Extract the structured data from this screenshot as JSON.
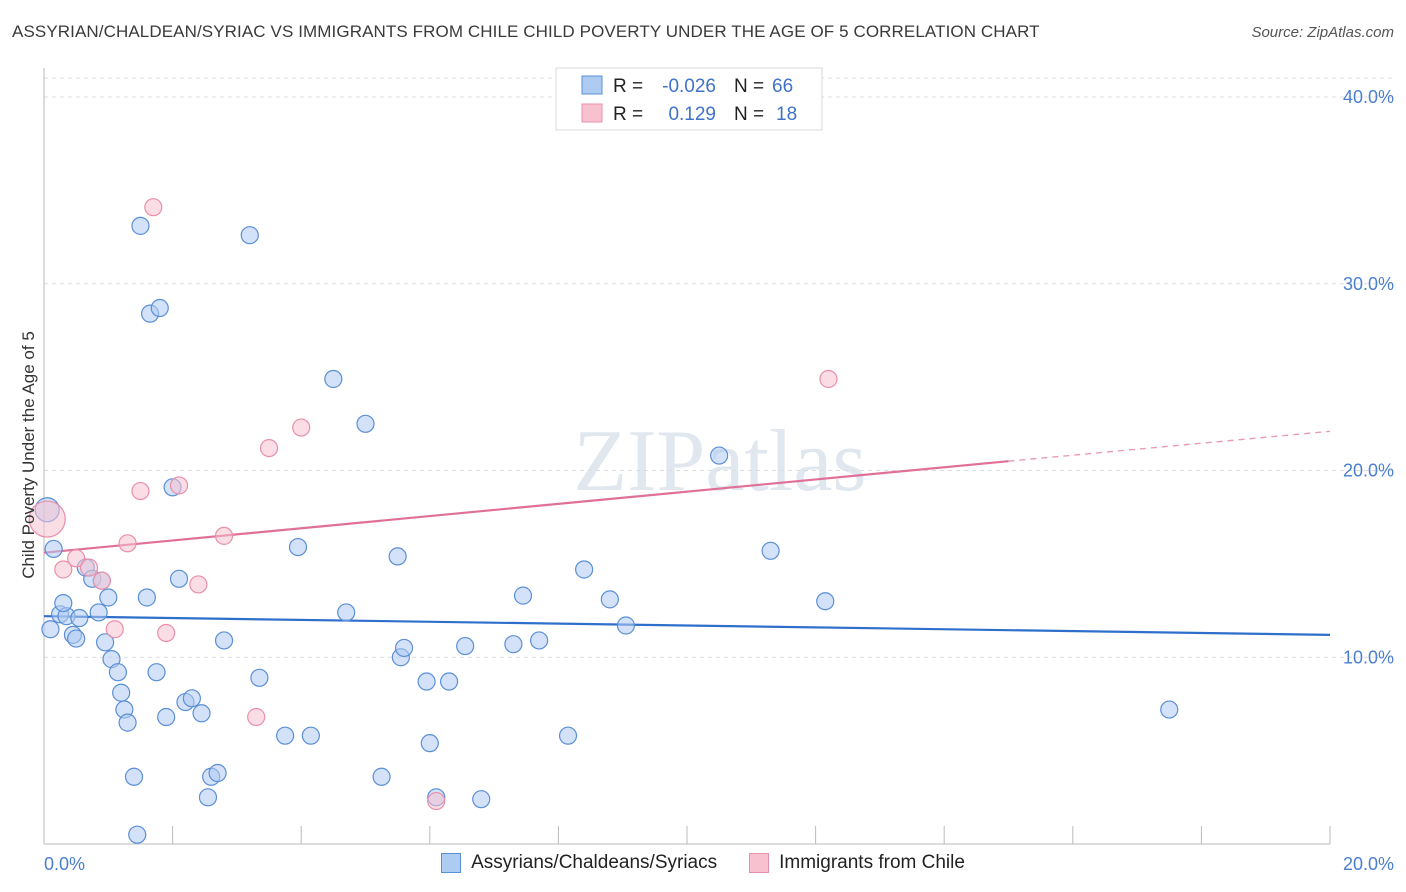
{
  "title": "ASSYRIAN/CHALDEAN/SYRIAC VS IMMIGRANTS FROM CHILE CHILD POVERTY UNDER THE AGE OF 5 CORRELATION CHART",
  "source": "Source: ZipAtlas.com",
  "watermark": "ZIPatlas",
  "colors": {
    "blue_fill": "#aecbf2",
    "blue_stroke": "#5b8fd6",
    "blue_line": "#2f6fcc",
    "pink_fill": "#f7c1d0",
    "pink_stroke": "#e890aa",
    "pink_line": "#e07098",
    "tick_text": "#4a7fd0"
  },
  "legend_box": {
    "rows": [
      {
        "r_label": "R =",
        "r_value": "-0.026",
        "n_label": "N =",
        "n_value": "66"
      },
      {
        "r_label": "R =",
        "r_value": "0.129",
        "n_label": "N =",
        "n_value": "18"
      }
    ]
  },
  "bottom_legend": {
    "items": [
      {
        "label": "Assyrians/Chaldeans/Syriacs"
      },
      {
        "label": "Immigrants from Chile"
      }
    ]
  },
  "chart_data": {
    "type": "scatter",
    "title": "ASSYRIAN/CHALDEAN/SYRIAC VS IMMIGRANTS FROM CHILE CHILD POVERTY UNDER THE AGE OF 5 CORRELATION CHART",
    "ylabel": "Child Poverty Under the Age of 5",
    "xlabel": "",
    "xlim": [
      0,
      20
    ],
    "ylim": [
      0,
      40
    ],
    "x_tick_labels": [
      "0.0%",
      "20.0%"
    ],
    "y_ticks": [
      10,
      20,
      30,
      40
    ],
    "y_tick_labels": [
      "10.0%",
      "20.0%",
      "30.0%",
      "40.0%"
    ],
    "grid": "horizontal dashed",
    "legend_position": "top-center",
    "series": [
      {
        "name": "Assyrians/Chaldeans/Syriacs",
        "color": "#aecbf2",
        "x": [
          0.05,
          0.15,
          0.1,
          0.25,
          0.35,
          0.3,
          0.45,
          0.55,
          0.5,
          0.65,
          0.75,
          0.85,
          0.95,
          1.05,
          1.15,
          0.9,
          1.0,
          1.2,
          1.25,
          1.3,
          1.4,
          1.5,
          1.6,
          1.65,
          1.75,
          1.8,
          1.9,
          2.0,
          2.1,
          2.2,
          2.3,
          2.45,
          2.55,
          2.6,
          2.7,
          2.8,
          3.2,
          3.35,
          3.75,
          3.95,
          4.15,
          4.5,
          4.7,
          5.0,
          5.25,
          5.5,
          5.55,
          5.95,
          5.6,
          6.0,
          6.1,
          6.3,
          6.55,
          6.8,
          7.3,
          7.45,
          7.7,
          8.15,
          8.4,
          8.8,
          9.05,
          10.5,
          11.3,
          12.15,
          1.45,
          17.5
        ],
        "y": [
          17.9,
          15.8,
          11.5,
          12.3,
          12.2,
          12.9,
          11.2,
          12.1,
          11.0,
          14.8,
          14.2,
          12.4,
          10.8,
          9.9,
          9.2,
          14.1,
          13.2,
          8.1,
          7.2,
          6.5,
          3.6,
          33.1,
          13.2,
          28.4,
          9.2,
          28.7,
          6.8,
          19.1,
          14.2,
          7.6,
          7.8,
          7.0,
          2.5,
          3.6,
          3.8,
          10.9,
          32.6,
          8.9,
          5.8,
          15.9,
          5.8,
          24.9,
          12.4,
          22.5,
          3.6,
          15.4,
          10.0,
          8.7,
          10.5,
          5.4,
          2.5,
          8.7,
          10.6,
          2.4,
          10.7,
          13.3,
          10.9,
          5.8,
          14.7,
          13.1,
          11.7,
          20.8,
          15.7,
          13.0,
          0.5,
          7.2
        ]
      },
      {
        "name": "Immigrants from Chile",
        "color": "#f7c1d0",
        "x": [
          0.05,
          0.3,
          0.5,
          0.7,
          0.9,
          1.1,
          1.3,
          1.5,
          1.7,
          1.9,
          2.1,
          2.4,
          2.8,
          3.3,
          3.5,
          4.0,
          6.1,
          12.2
        ],
        "y": [
          17.4,
          14.7,
          15.3,
          14.8,
          14.1,
          11.5,
          16.1,
          18.9,
          34.1,
          11.3,
          19.2,
          13.9,
          16.5,
          6.8,
          21.2,
          22.3,
          2.3,
          24.9
        ]
      }
    ],
    "trend_lines": [
      {
        "series": "Assyrians/Chaldeans/Syriacs",
        "x": [
          0,
          20
        ],
        "y": [
          12.2,
          11.2
        ]
      },
      {
        "series": "Immigrants from Chile",
        "x": [
          0,
          15
        ],
        "y": [
          15.6,
          20.5
        ],
        "dashed_extension_to": [
          20,
          22.1
        ]
      }
    ]
  }
}
